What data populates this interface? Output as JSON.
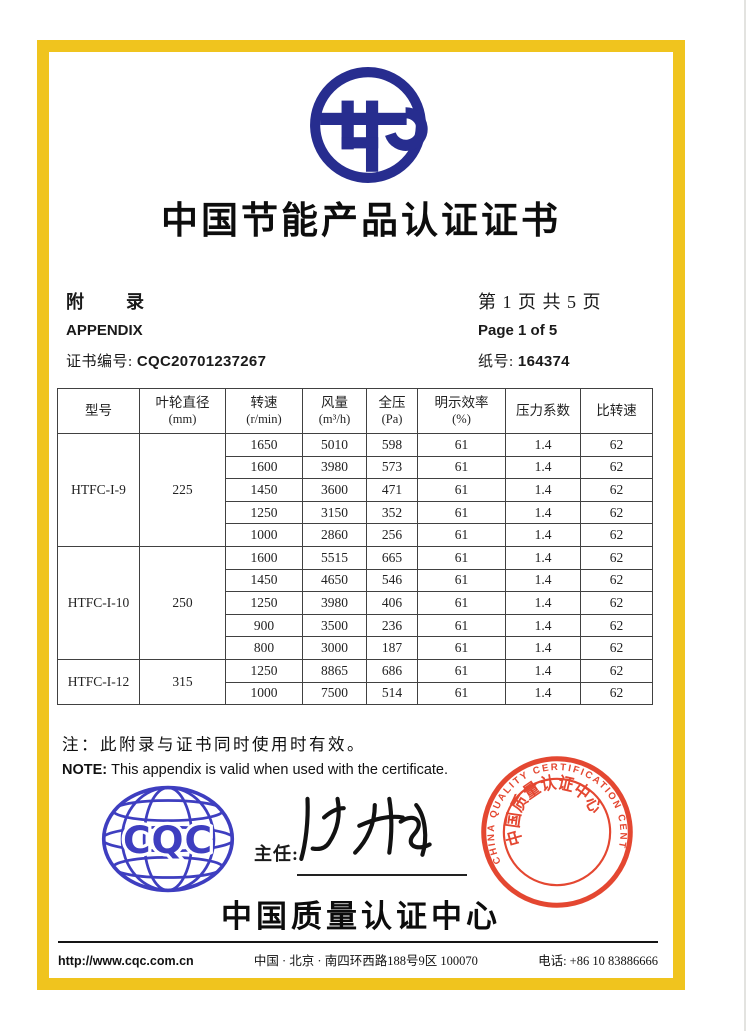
{
  "document": {
    "title_cn": "中国节能产品认证证书"
  },
  "header": {
    "appendix_cn": "附　　录",
    "appendix_en": "APPENDIX",
    "cert_no_label": "证书编号: ",
    "cert_no": "CQC20701237267",
    "page_info_cn": "第 1 页 共 5 页",
    "page_info_en": "Page 1 of 5",
    "paper_no_label": "纸号: ",
    "paper_no": "164374"
  },
  "table": {
    "columns": [
      {
        "title": "型号",
        "unit": ""
      },
      {
        "title": "叶轮直径",
        "unit": "(mm)"
      },
      {
        "title": "转速",
        "unit": "(r/min)"
      },
      {
        "title": "风量",
        "unit": "(m³/h)"
      },
      {
        "title": "全压",
        "unit": "(Pa)"
      },
      {
        "title": "明示效率",
        "unit": "(%)"
      },
      {
        "title": "压力系数",
        "unit": ""
      },
      {
        "title": "比转速",
        "unit": ""
      }
    ],
    "groups": [
      {
        "model": "HTFC-I-9",
        "impeller_diameter": "225",
        "rows": [
          [
            "1650",
            "5010",
            "598",
            "61",
            "1.4",
            "62"
          ],
          [
            "1600",
            "3980",
            "573",
            "61",
            "1.4",
            "62"
          ],
          [
            "1450",
            "3600",
            "471",
            "61",
            "1.4",
            "62"
          ],
          [
            "1250",
            "3150",
            "352",
            "61",
            "1.4",
            "62"
          ],
          [
            "1000",
            "2860",
            "256",
            "61",
            "1.4",
            "62"
          ]
        ]
      },
      {
        "model": "HTFC-I-10",
        "impeller_diameter": "250",
        "rows": [
          [
            "1600",
            "5515",
            "665",
            "61",
            "1.4",
            "62"
          ],
          [
            "1450",
            "4650",
            "546",
            "61",
            "1.4",
            "62"
          ],
          [
            "1250",
            "3980",
            "406",
            "61",
            "1.4",
            "62"
          ],
          [
            "900",
            "3500",
            "236",
            "61",
            "1.4",
            "62"
          ],
          [
            "800",
            "3000",
            "187",
            "61",
            "1.4",
            "62"
          ]
        ]
      },
      {
        "model": "HTFC-I-12",
        "impeller_diameter": "315",
        "rows": [
          [
            "1250",
            "8865",
            "686",
            "61",
            "1.4",
            "62"
          ],
          [
            "1000",
            "7500",
            "514",
            "61",
            "1.4",
            "62"
          ]
        ]
      }
    ]
  },
  "note": {
    "cn": "注：此附录与证书同时使用时有效。",
    "en_label": "NOTE:",
    "en": "This appendix is valid when used with the certificate."
  },
  "signing": {
    "director_label": "主任:",
    "org_name_cn": "中国质量认证中心",
    "cqc_logo_text": "CQC",
    "stamp_text_en": "CHINA QUALITY CERTIFICATION CENTRE",
    "stamp_text_cn": "中国质量认证中心"
  },
  "footer": {
    "website": "http://www.cqc.com.cn",
    "address": "中国 · 北京 · 南四环西路188号9区  100070",
    "phone_label": "电话: ",
    "phone": "+86 10 83886666"
  },
  "colors": {
    "frame_yellow": "#f0c41e",
    "energy_logo_navy": "#272d8f",
    "cqc_logo_blue": "#3e3ec0",
    "stamp_red": "#e23a22",
    "text_black": "#1a1a1a"
  }
}
